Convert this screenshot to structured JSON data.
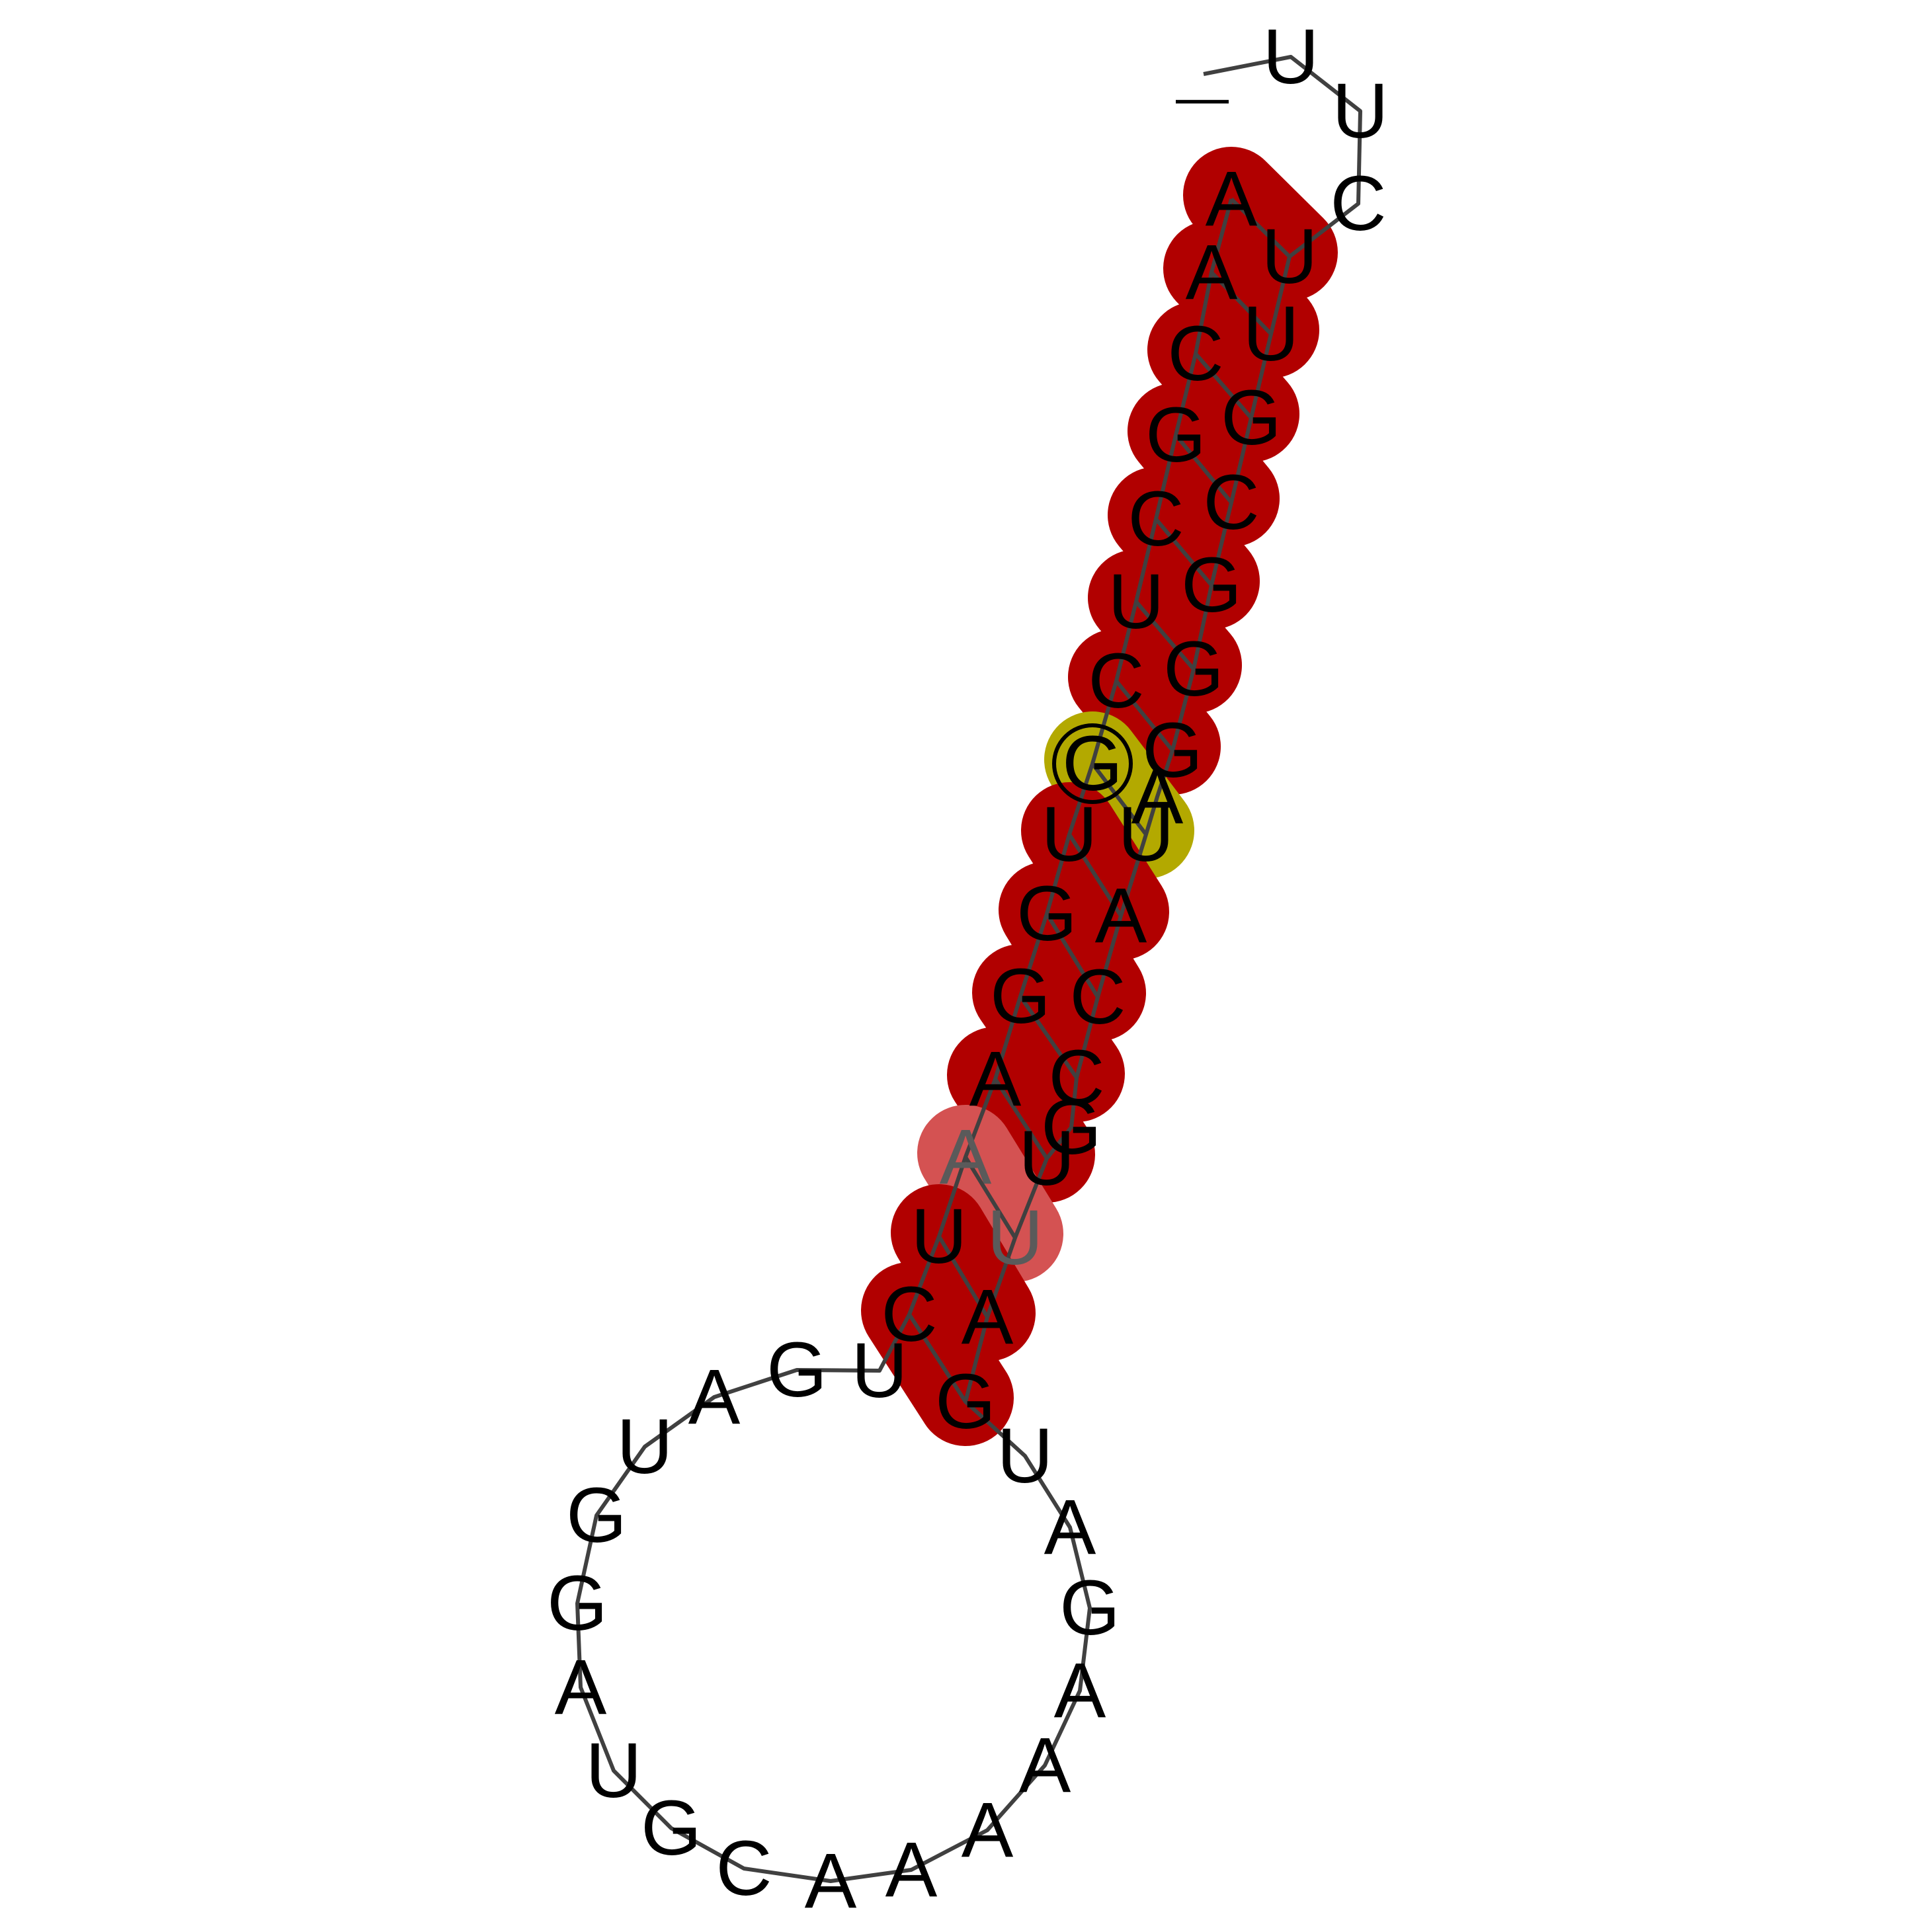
{
  "diagram": {
    "type": "rna-secondary-structure",
    "five_prime_marker": "—",
    "colors": {
      "pair_strong": "#b10000",
      "pair_weak": "#d45252",
      "pair_wobble": "#b3a900",
      "backbone": "#404040",
      "letter": "#000000",
      "letter_faded": "#5a5a5a",
      "background": "#ffffff"
    },
    "nucleotides": [
      {
        "i": 1,
        "base": "U"
      },
      {
        "i": 2,
        "base": "U"
      },
      {
        "i": 3,
        "base": "C"
      },
      {
        "i": 4,
        "base": "U"
      },
      {
        "i": 5,
        "base": "U"
      },
      {
        "i": 6,
        "base": "G"
      },
      {
        "i": 7,
        "base": "C"
      },
      {
        "i": 8,
        "base": "G"
      },
      {
        "i": 9,
        "base": "G"
      },
      {
        "i": 10,
        "base": "G"
      },
      {
        "i": 11,
        "base": "A"
      },
      {
        "i": 12,
        "base": "U"
      },
      {
        "i": 13,
        "base": "A"
      },
      {
        "i": 14,
        "base": "C"
      },
      {
        "i": 15,
        "base": "C"
      },
      {
        "i": 16,
        "base": "G"
      },
      {
        "i": 17,
        "base": "U"
      },
      {
        "i": 18,
        "base": "U"
      },
      {
        "i": 19,
        "base": "A"
      },
      {
        "i": 20,
        "base": "G"
      },
      {
        "i": 21,
        "base": "U"
      },
      {
        "i": 22,
        "base": "A"
      },
      {
        "i": 23,
        "base": "G"
      },
      {
        "i": 24,
        "base": "A"
      },
      {
        "i": 25,
        "base": "A"
      },
      {
        "i": 26,
        "base": "A"
      },
      {
        "i": 27,
        "base": "A"
      },
      {
        "i": 28,
        "base": "A"
      },
      {
        "i": 29,
        "base": "C"
      },
      {
        "i": 30,
        "base": "G"
      },
      {
        "i": 31,
        "base": "U"
      },
      {
        "i": 32,
        "base": "A"
      },
      {
        "i": 33,
        "base": "G"
      },
      {
        "i": 34,
        "base": "G"
      },
      {
        "i": 35,
        "base": "U"
      },
      {
        "i": 36,
        "base": "A"
      },
      {
        "i": 37,
        "base": "G"
      },
      {
        "i": 38,
        "base": "U"
      },
      {
        "i": 39,
        "base": "C"
      },
      {
        "i": 40,
        "base": "U"
      },
      {
        "i": 41,
        "base": "A"
      },
      {
        "i": 42,
        "base": "A"
      },
      {
        "i": 43,
        "base": "G"
      },
      {
        "i": 44,
        "base": "G"
      },
      {
        "i": 45,
        "base": "U"
      },
      {
        "i": 46,
        "base": "G"
      },
      {
        "i": 47,
        "base": "C"
      },
      {
        "i": 48,
        "base": "U"
      },
      {
        "i": 49,
        "base": "C"
      },
      {
        "i": 50,
        "base": "G"
      },
      {
        "i": 51,
        "base": "C"
      },
      {
        "i": 52,
        "base": "A"
      },
      {
        "i": 53,
        "base": "A"
      }
    ],
    "pairs": [
      {
        "a": 4,
        "b": 53,
        "kind": "strong"
      },
      {
        "a": 5,
        "b": 52,
        "kind": "strong"
      },
      {
        "a": 6,
        "b": 51,
        "kind": "strong"
      },
      {
        "a": 7,
        "b": 50,
        "kind": "strong"
      },
      {
        "a": 8,
        "b": 49,
        "kind": "strong"
      },
      {
        "a": 9,
        "b": 48,
        "kind": "strong"
      },
      {
        "a": 10,
        "b": 47,
        "kind": "strong"
      },
      {
        "a": 12,
        "b": 46,
        "kind": "wobble"
      },
      {
        "a": 13,
        "b": 45,
        "kind": "strong"
      },
      {
        "a": 14,
        "b": 44,
        "kind": "strong"
      },
      {
        "a": 15,
        "b": 43,
        "kind": "strong"
      },
      {
        "a": 17,
        "b": 42,
        "kind": "strong"
      },
      {
        "a": 18,
        "b": 41,
        "kind": "weak"
      },
      {
        "a": 19,
        "b": 40,
        "kind": "strong"
      },
      {
        "a": 20,
        "b": 39,
        "kind": "strong"
      }
    ],
    "circled_nucleotide": 46
  }
}
